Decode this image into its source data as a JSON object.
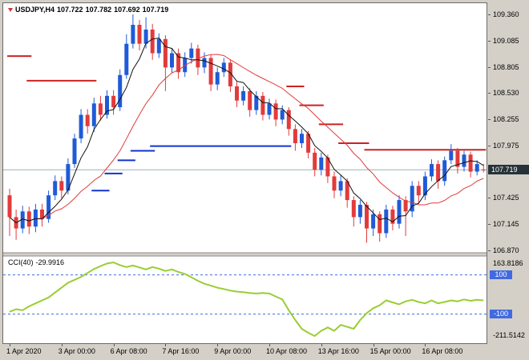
{
  "header": {
    "symbol_label": "USDJPY,H4",
    "open": "107.722",
    "high": "107.782",
    "low": "107.692",
    "close": "107.719"
  },
  "price_axis": {
    "current_price_label": "107.719"
  },
  "time_axis": {
    "labels": [
      {
        "text": "1 Apr 2020",
        "i": 0
      },
      {
        "text": "3 Apr 00:00",
        "i": 8
      },
      {
        "text": "6 Apr 08:00",
        "i": 16
      },
      {
        "text": "7 Apr 16:00",
        "i": 24
      },
      {
        "text": "9 Apr 00:00",
        "i": 32
      },
      {
        "text": "10 Apr 08:00",
        "i": 40
      },
      {
        "text": "13 Apr 16:00",
        "i": 48
      },
      {
        "text": "15 Apr 00:00",
        "i": 56
      },
      {
        "text": "16 Apr 08:00",
        "i": 64
      }
    ]
  },
  "indicator": {
    "name_label": "CCI(40)",
    "value_label": "-29.9916",
    "max_label": "163.8186",
    "min_label": "-211.5142",
    "level_high": "100",
    "level_low": "-100"
  },
  "colors": {
    "bull": "#1f5bd8",
    "bear": "#e23b3b",
    "ma_fast": "#111111",
    "ma_slow": "#e23b3b",
    "support_line": "#1133cc",
    "resistance_line": "#cc2222",
    "cci_line": "#9acd32",
    "cci_level": "#4169e1",
    "price_line": "#9bb0b8",
    "badge_bg": "#263238",
    "chrome_bg": "#d4d0c8"
  },
  "chart_data": {
    "type": "candlestick",
    "symbol": "USDJPY",
    "timeframe": "H4",
    "title": "USDJPY,H4",
    "current_price": 107.719,
    "price_ticks": [
      109.36,
      109.085,
      108.805,
      108.53,
      108.255,
      107.975,
      107.7,
      107.425,
      107.145,
      106.87
    ],
    "ohlc": [
      [
        107.45,
        107.52,
        107.02,
        107.22
      ],
      [
        107.22,
        107.3,
        106.98,
        107.1
      ],
      [
        107.1,
        107.34,
        107.05,
        107.28
      ],
      [
        107.28,
        107.33,
        107.04,
        107.12
      ],
      [
        107.12,
        107.36,
        107.06,
        107.3
      ],
      [
        107.3,
        107.36,
        107.12,
        107.2
      ],
      [
        107.2,
        107.5,
        107.16,
        107.45
      ],
      [
        107.45,
        107.66,
        107.4,
        107.6
      ],
      [
        107.6,
        107.65,
        107.42,
        107.5
      ],
      [
        107.5,
        107.84,
        107.46,
        107.78
      ],
      [
        107.78,
        108.1,
        107.74,
        108.05
      ],
      [
        108.05,
        108.36,
        108.0,
        108.3
      ],
      [
        108.3,
        108.36,
        108.1,
        108.18
      ],
      [
        108.18,
        108.48,
        108.12,
        108.42
      ],
      [
        108.42,
        108.5,
        108.24,
        108.3
      ],
      [
        108.3,
        108.56,
        108.26,
        108.5
      ],
      [
        108.5,
        108.56,
        108.3,
        108.38
      ],
      [
        108.38,
        108.78,
        108.34,
        108.72
      ],
      [
        108.72,
        109.15,
        108.68,
        109.05
      ],
      [
        109.05,
        109.36,
        109.0,
        109.25
      ],
      [
        109.25,
        109.3,
        108.98,
        109.05
      ],
      [
        109.05,
        109.33,
        109.0,
        109.2
      ],
      [
        109.2,
        109.26,
        108.88,
        108.95
      ],
      [
        108.95,
        109.16,
        108.9,
        109.1
      ],
      [
        109.1,
        109.14,
        108.55,
        108.8
      ],
      [
        108.8,
        109.0,
        108.74,
        108.95
      ],
      [
        108.95,
        109.0,
        108.68,
        108.75
      ],
      [
        108.75,
        108.96,
        108.7,
        108.9
      ],
      [
        108.9,
        109.06,
        108.84,
        109.0
      ],
      [
        109.0,
        109.04,
        108.72,
        108.8
      ],
      [
        108.8,
        108.96,
        108.74,
        108.9
      ],
      [
        108.9,
        108.94,
        108.55,
        108.62
      ],
      [
        108.62,
        108.8,
        108.56,
        108.75
      ],
      [
        108.75,
        108.9,
        108.7,
        108.85
      ],
      [
        108.85,
        108.88,
        108.54,
        108.6
      ],
      [
        108.6,
        108.66,
        108.38,
        108.45
      ],
      [
        108.45,
        108.6,
        108.4,
        108.55
      ],
      [
        108.55,
        108.58,
        108.28,
        108.35
      ],
      [
        108.35,
        108.55,
        108.3,
        108.5
      ],
      [
        108.5,
        108.54,
        108.24,
        108.3
      ],
      [
        108.3,
        108.47,
        108.25,
        108.42
      ],
      [
        108.42,
        108.46,
        108.18,
        108.25
      ],
      [
        108.25,
        108.4,
        108.2,
        108.35
      ],
      [
        108.35,
        108.38,
        108.08,
        108.15
      ],
      [
        108.15,
        108.2,
        107.92,
        108.0
      ],
      [
        108.0,
        108.15,
        107.95,
        108.1
      ],
      [
        108.1,
        108.13,
        107.84,
        107.9
      ],
      [
        107.9,
        107.95,
        107.65,
        107.72
      ],
      [
        107.72,
        107.9,
        107.66,
        107.85
      ],
      [
        107.85,
        107.88,
        107.58,
        107.65
      ],
      [
        107.65,
        107.7,
        107.42,
        107.5
      ],
      [
        107.5,
        107.66,
        107.44,
        107.6
      ],
      [
        107.6,
        107.63,
        107.32,
        107.4
      ],
      [
        107.4,
        107.44,
        107.12,
        107.22
      ],
      [
        107.22,
        107.4,
        107.15,
        107.35
      ],
      [
        107.35,
        107.38,
        106.95,
        107.1
      ],
      [
        107.1,
        107.3,
        107.02,
        107.25
      ],
      [
        107.25,
        107.28,
        106.96,
        107.05
      ],
      [
        107.05,
        107.35,
        107.0,
        107.3
      ],
      [
        107.3,
        107.34,
        107.08,
        107.15
      ],
      [
        107.15,
        107.45,
        107.1,
        107.4
      ],
      [
        107.4,
        107.44,
        107.02,
        107.28
      ],
      [
        107.28,
        107.6,
        107.22,
        107.55
      ],
      [
        107.55,
        107.6,
        107.36,
        107.45
      ],
      [
        107.45,
        107.7,
        107.4,
        107.65
      ],
      [
        107.65,
        107.83,
        107.6,
        107.78
      ],
      [
        107.78,
        107.82,
        107.52,
        107.6
      ],
      [
        107.6,
        107.86,
        107.55,
        107.82
      ],
      [
        107.82,
        107.99,
        107.78,
        107.92
      ],
      [
        107.92,
        107.95,
        107.68,
        107.75
      ],
      [
        107.75,
        107.92,
        107.7,
        107.88
      ],
      [
        107.88,
        107.91,
        107.64,
        107.7
      ],
      [
        107.7,
        107.82,
        107.66,
        107.78
      ],
      [
        107.722,
        107.782,
        107.692,
        107.719
      ]
    ],
    "ma_fast_period": 5,
    "ma_slow_period": 15,
    "resistance_steps": [
      [
        0,
        3,
        108.92
      ],
      [
        3,
        13,
        108.66
      ],
      [
        43,
        45,
        108.6
      ],
      [
        45,
        48,
        108.4
      ],
      [
        48,
        51,
        108.2
      ],
      [
        51,
        55,
        108.0
      ],
      [
        55,
        73,
        107.93
      ]
    ],
    "support_steps": [
      [
        13,
        15,
        107.5
      ],
      [
        15,
        17,
        107.68
      ],
      [
        17,
        19,
        107.82
      ],
      [
        19,
        22,
        107.92
      ],
      [
        22,
        43,
        107.97
      ]
    ],
    "cci": {
      "period": 40,
      "last": -29.9916,
      "max": 163.8186,
      "min": -211.5142,
      "levels": [
        100,
        -100
      ],
      "values": [
        -88,
        -75,
        -80,
        -60,
        -45,
        -30,
        -15,
        10,
        35,
        60,
        75,
        90,
        110,
        130,
        145,
        158,
        163.8186,
        150,
        140,
        148,
        138,
        128,
        140,
        132,
        120,
        128,
        115,
        105,
        88,
        70,
        55,
        45,
        35,
        28,
        20,
        15,
        12,
        8,
        5,
        8,
        5,
        -10,
        -25,
        -80,
        -130,
        -175,
        -195,
        -211.5142,
        -185,
        -168,
        -185,
        -155,
        -165,
        -175,
        -130,
        -95,
        -70,
        -55,
        -30,
        -40,
        -50,
        -35,
        -27,
        -38,
        -45,
        -30,
        -45,
        -38,
        -30,
        -35,
        -25,
        -32,
        -27,
        -29.9916
      ]
    }
  }
}
